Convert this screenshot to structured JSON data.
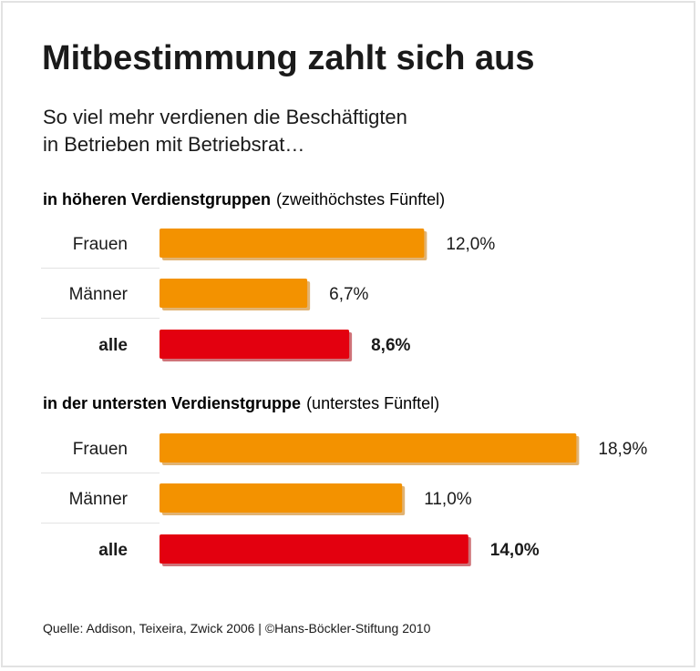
{
  "chart_data": {
    "type": "bar",
    "orientation": "horizontal",
    "title": "Mitbestimmung zahlt sich aus",
    "subtitle": [
      "So viel mehr verdienen die Beschäftigten",
      "in Betrieben mit Betriebsrat…"
    ],
    "groups": [
      {
        "heading": "in höheren Verdienstgruppen",
        "heading_note": "(zweithöchstes Fünftel)",
        "categories": [
          "Frauen",
          "Männer",
          "alle"
        ],
        "values": [
          12.0,
          6.7,
          8.6
        ],
        "value_labels": [
          "12,0%",
          "6,7%",
          "8,6%"
        ],
        "highlight": [
          false,
          false,
          true
        ]
      },
      {
        "heading": "in der untersten Verdienstgruppe",
        "heading_note": "(unterstes Fünftel)",
        "categories": [
          "Frauen",
          "Männer",
          "alle"
        ],
        "values": [
          18.9,
          11.0,
          14.0
        ],
        "value_labels": [
          "18,9%",
          "11,0%",
          "14,0%"
        ],
        "highlight": [
          false,
          false,
          true
        ]
      }
    ],
    "unit": "%",
    "colors": {
      "normal": "#f39200",
      "highlight": "#e3000f",
      "normal_shadow": "#c97400",
      "highlight_shadow": "#a8000b"
    },
    "grid": false,
    "legend": "none"
  },
  "footer": "Quelle: Addison, Teixeira, Zwick 2006 | ©Hans-Böckler-Stiftung 2010"
}
